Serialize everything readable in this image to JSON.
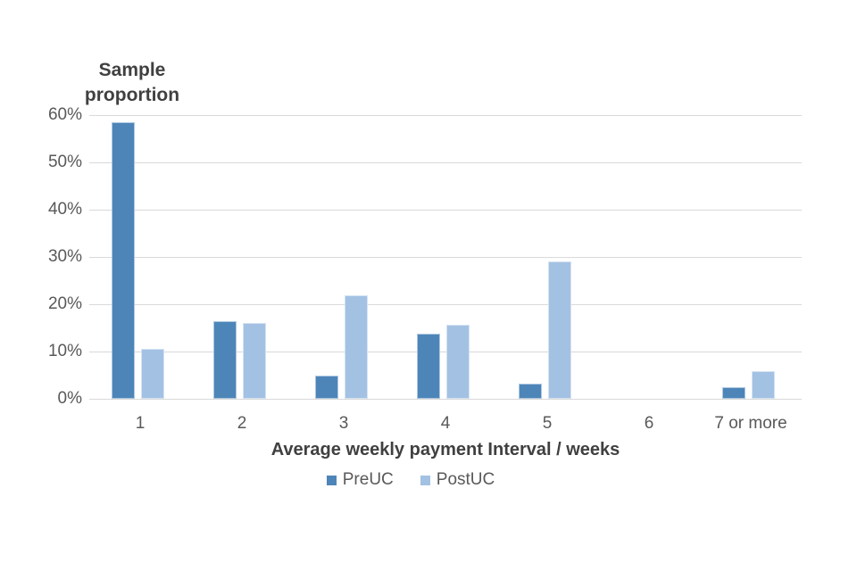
{
  "chart_data": {
    "type": "bar",
    "title": "",
    "ylabel": "Sample\nproportion",
    "xlabel": "Average weekly payment Interval / weeks",
    "categories": [
      "1",
      "2",
      "3",
      "4",
      "5",
      "6",
      "7 or more"
    ],
    "series": [
      {
        "name": "PreUC",
        "color": "#4d85b8",
        "values": [
          58.5,
          16.4,
          4.9,
          13.8,
          3.3,
          0,
          2.5
        ]
      },
      {
        "name": "PostUC",
        "color": "#a3c1e3",
        "values": [
          10.5,
          16.0,
          21.9,
          15.6,
          29.0,
          0,
          5.9
        ]
      }
    ],
    "y_ticks": [
      {
        "label": "0%",
        "value": 0
      },
      {
        "label": "10%",
        "value": 10
      },
      {
        "label": "20%",
        "value": 20
      },
      {
        "label": "30%",
        "value": 30
      },
      {
        "label": "40%",
        "value": 40
      },
      {
        "label": "50%",
        "value": 50
      },
      {
        "label": "60%",
        "value": 60
      }
    ],
    "ylim": [
      0,
      60
    ],
    "grid": "horizontal",
    "gridline_color": "#d9d9d9",
    "tick_text_color": "#595959",
    "title_text_color": "#404040",
    "legend_position": "bottom"
  }
}
